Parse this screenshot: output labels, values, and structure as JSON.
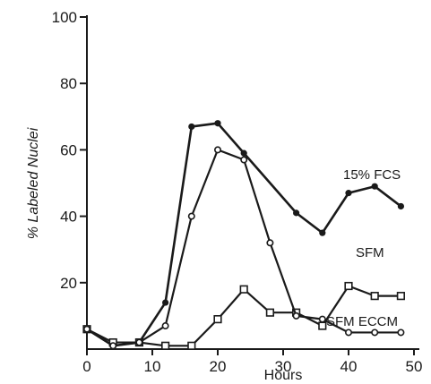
{
  "chart_data": {
    "type": "line",
    "xlabel": "Hours",
    "ylabel": "% Labeled Nuclei",
    "xlim": [
      0,
      50
    ],
    "ylim": [
      0,
      100
    ],
    "xticks": [
      0,
      10,
      20,
      30,
      40,
      50
    ],
    "yticks": [
      20,
      40,
      60,
      80,
      100
    ],
    "grid": false,
    "series": [
      {
        "name": "15% FCS",
        "marker": "filled-circle",
        "x": [
          0,
          4,
          8,
          12,
          16,
          20,
          24,
          32,
          36,
          40,
          44,
          48
        ],
        "y": [
          6,
          1,
          2,
          14,
          67,
          68,
          59,
          41,
          35,
          47,
          49,
          43
        ]
      },
      {
        "name": "SFM",
        "marker": "open-square",
        "x": [
          0,
          4,
          8,
          12,
          16,
          20,
          24,
          28,
          32,
          36,
          40,
          44,
          48
        ],
        "y": [
          6,
          2,
          2,
          1,
          1,
          9,
          18,
          11,
          11,
          7,
          19,
          16,
          16
        ]
      },
      {
        "name": "SFM ECCM",
        "marker": "open-circle",
        "x": [
          0,
          4,
          8,
          12,
          16,
          20,
          24,
          28,
          32,
          36,
          40,
          44,
          48
        ],
        "y": [
          6,
          1,
          2,
          7,
          40,
          60,
          57,
          32,
          10,
          9,
          5,
          5,
          5
        ]
      }
    ],
    "colors": {
      "line": "#1a1a1a",
      "background": "#ffffff"
    }
  }
}
